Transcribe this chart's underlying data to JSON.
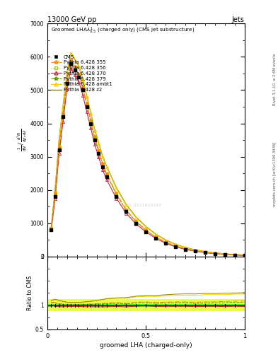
{
  "title_top": "13000 GeV pp",
  "title_right": "Jets",
  "xlabel": "groomed LHA (charged-only)",
  "right_label_top": "Rivet 3.1.10, ≥ 2.6M events",
  "right_label_bottom": "mcplots.cern.ch [arXiv:1306.3436]",
  "watermark": "CMS_2021920187",
  "x_data": [
    0.02,
    0.04,
    0.06,
    0.08,
    0.1,
    0.12,
    0.14,
    0.16,
    0.18,
    0.2,
    0.22,
    0.24,
    0.26,
    0.28,
    0.3,
    0.35,
    0.4,
    0.45,
    0.5,
    0.55,
    0.6,
    0.65,
    0.7,
    0.75,
    0.8,
    0.85,
    0.9,
    0.95,
    1.0
  ],
  "cms_y": [
    800,
    1800,
    3200,
    4200,
    5200,
    5800,
    5600,
    5400,
    5000,
    4500,
    4000,
    3500,
    3100,
    2700,
    2400,
    1800,
    1350,
    1000,
    750,
    560,
    410,
    300,
    220,
    165,
    120,
    88,
    65,
    48,
    35
  ],
  "p355_y": [
    850,
    1900,
    3300,
    4300,
    5300,
    5900,
    5700,
    5500,
    5100,
    4600,
    4100,
    3600,
    3200,
    2800,
    2500,
    1900,
    1400,
    1060,
    800,
    590,
    435,
    320,
    235,
    175,
    128,
    94,
    70,
    52,
    38
  ],
  "p356_y": [
    840,
    1880,
    3280,
    4280,
    5280,
    5880,
    5680,
    5480,
    5080,
    4580,
    4080,
    3580,
    3180,
    2780,
    2480,
    1880,
    1390,
    1050,
    790,
    585,
    430,
    315,
    232,
    172,
    126,
    92,
    68,
    51,
    37
  ],
  "p370_y": [
    800,
    1750,
    3100,
    4050,
    5050,
    5650,
    5450,
    5250,
    4850,
    4350,
    3870,
    3380,
    2990,
    2610,
    2320,
    1750,
    1300,
    980,
    740,
    545,
    400,
    293,
    215,
    160,
    117,
    86,
    63,
    47,
    34
  ],
  "p379_y": [
    840,
    1880,
    3270,
    4270,
    5270,
    5870,
    5670,
    5470,
    5070,
    4570,
    4070,
    3570,
    3170,
    2770,
    2470,
    1870,
    1385,
    1045,
    788,
    582,
    428,
    314,
    231,
    171,
    125,
    92,
    68,
    51,
    37
  ],
  "pambt1_y": [
    870,
    2000,
    3500,
    4500,
    5500,
    6100,
    5900,
    5700,
    5300,
    4800,
    4300,
    3800,
    3400,
    3000,
    2700,
    2050,
    1540,
    1170,
    885,
    660,
    488,
    360,
    265,
    198,
    146,
    107,
    79,
    59,
    43
  ],
  "pz2_y": [
    880,
    2020,
    3520,
    4520,
    5520,
    6120,
    5920,
    5720,
    5320,
    4820,
    4320,
    3820,
    3420,
    3020,
    2720,
    2070,
    1560,
    1185,
    900,
    672,
    498,
    368,
    271,
    203,
    149,
    109,
    81,
    60,
    44
  ],
  "ratio_band_green": 0.03,
  "ratio_band_yellow": 0.12,
  "colors": {
    "cms": "#000000",
    "p355": "#ff8800",
    "p356": "#aacc00",
    "p370": "#cc2244",
    "p379": "#669900",
    "pambt1": "#ffcc00",
    "pz2": "#888800"
  },
  "ylim": [
    0,
    7000
  ],
  "xlim": [
    0,
    1
  ],
  "ratio_ylim": [
    0.5,
    2.0
  ],
  "yticks": [
    0,
    1000,
    2000,
    3000,
    4000,
    5000,
    6000,
    7000
  ]
}
